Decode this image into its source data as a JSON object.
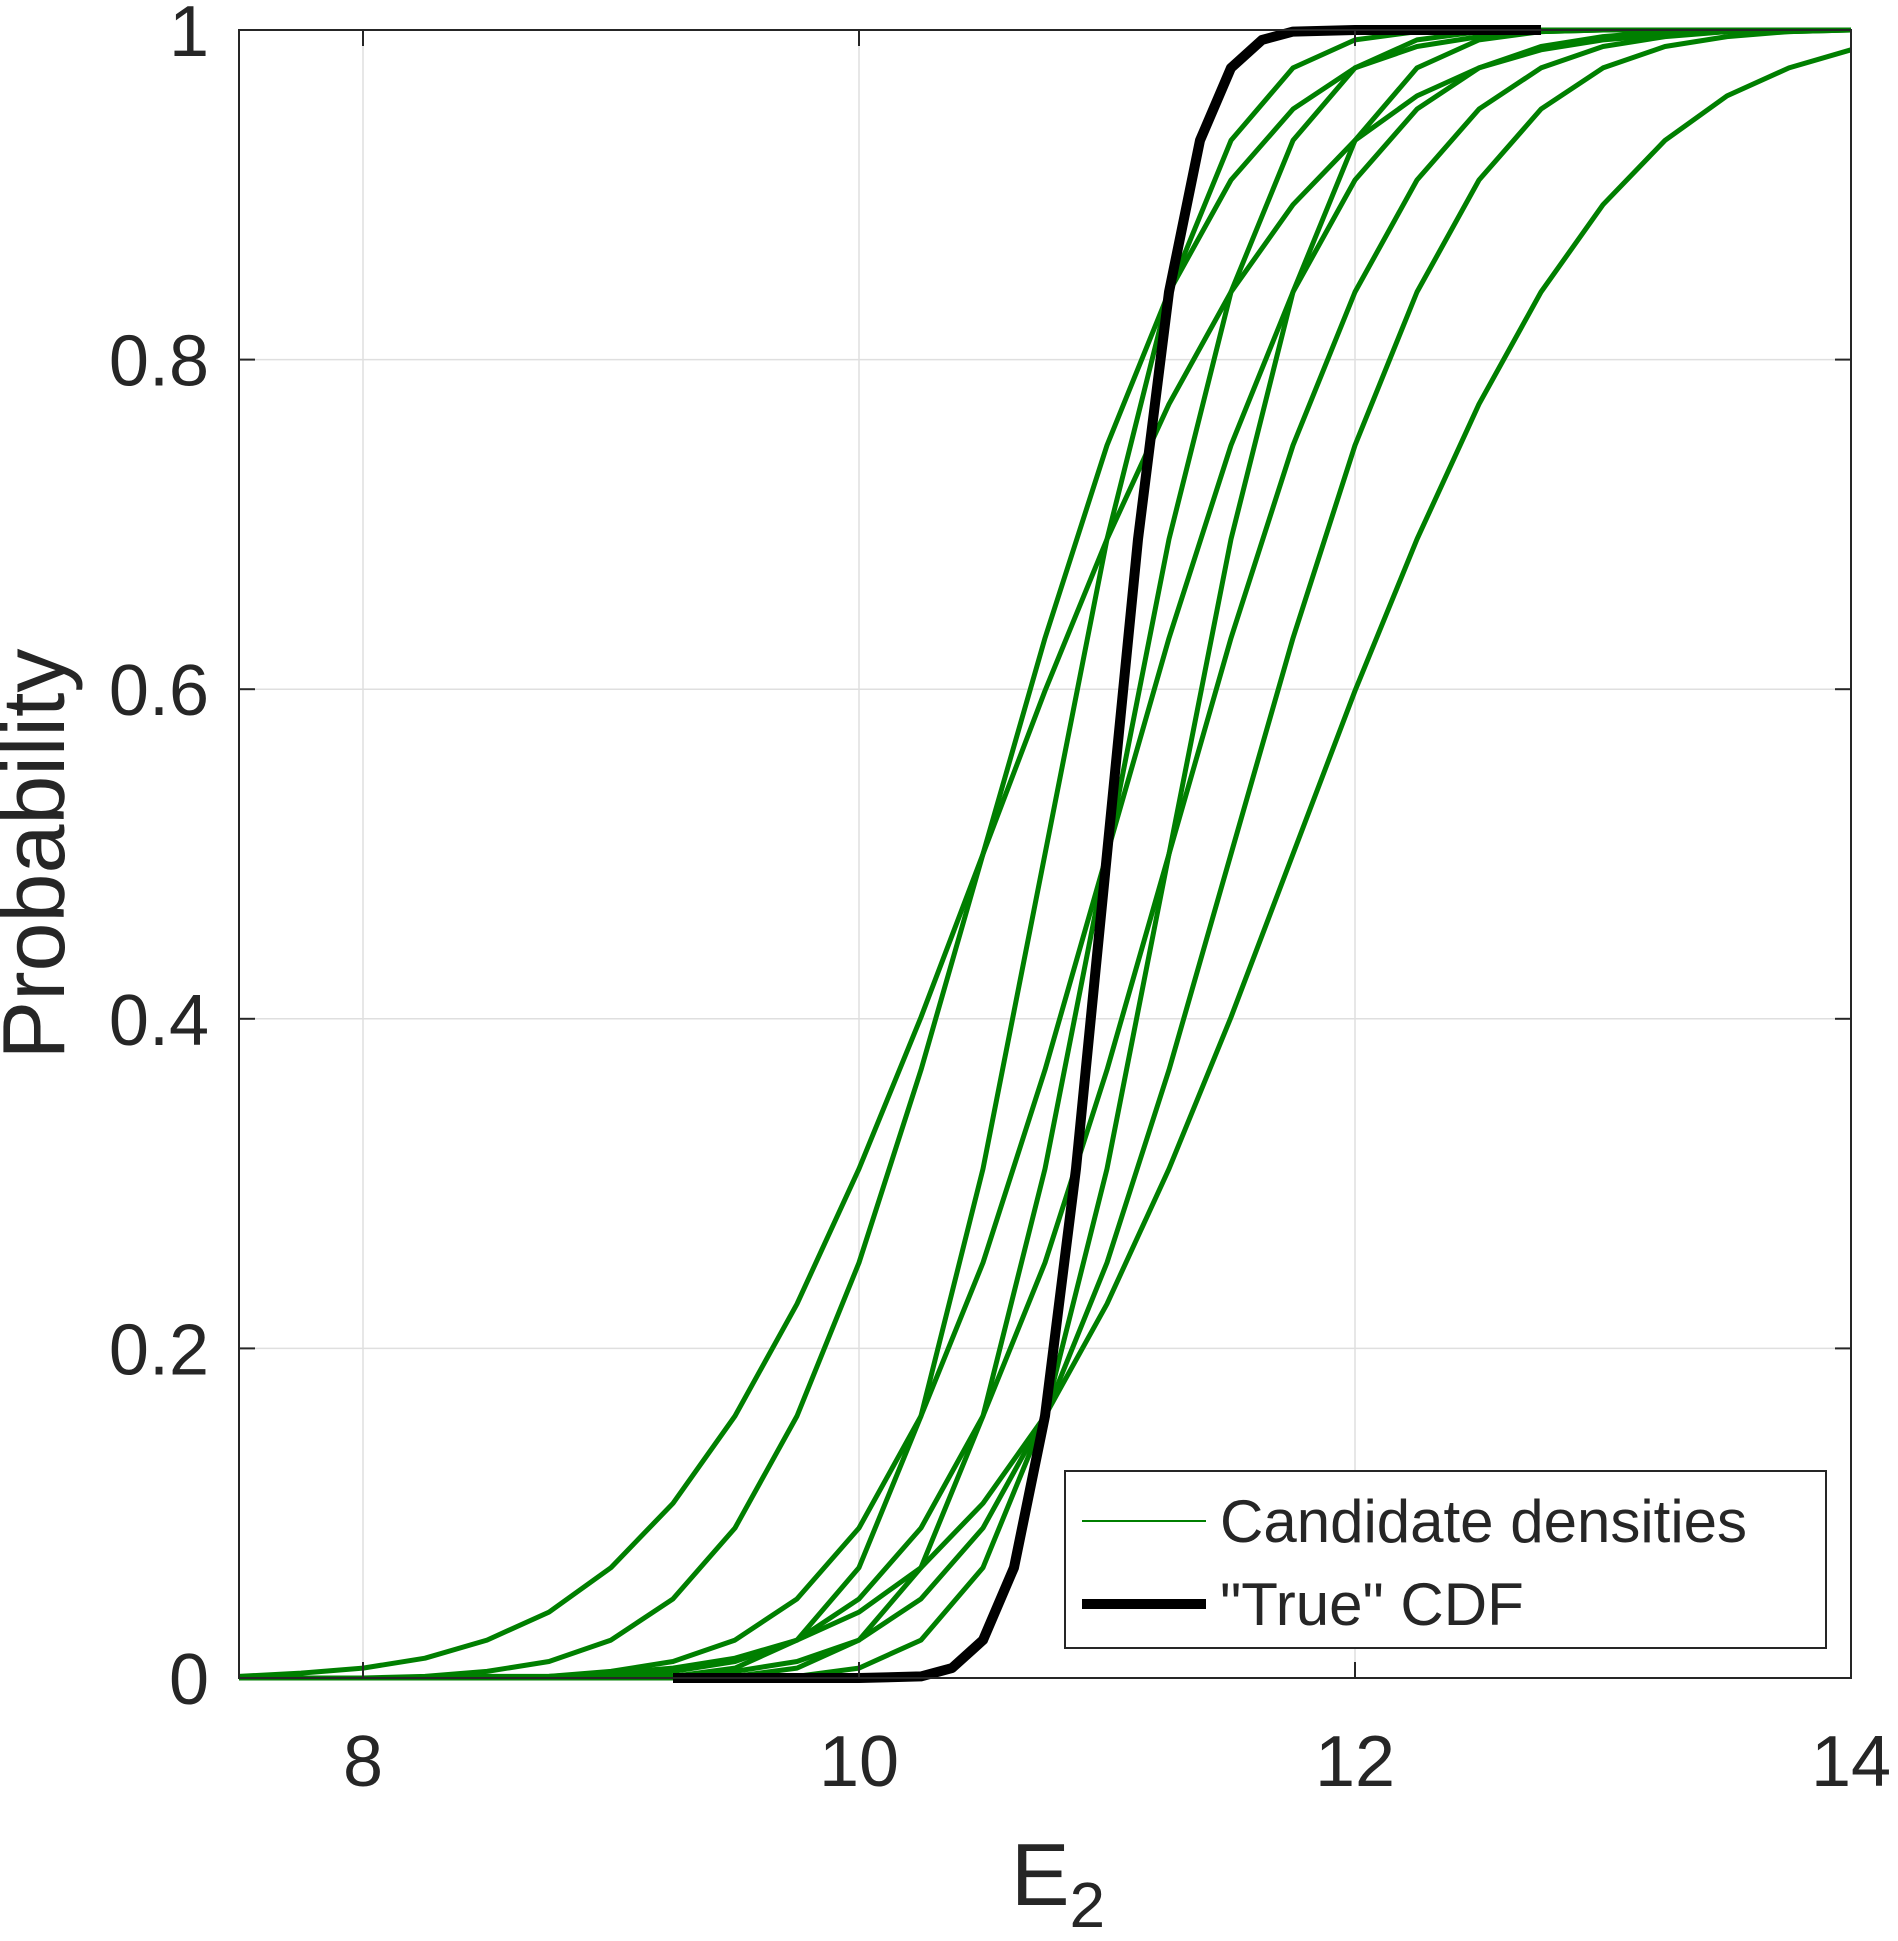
{
  "chart_data": {
    "type": "line",
    "xlabel": {
      "text": "E",
      "subscript": "2"
    },
    "ylabel": "Probability",
    "x": [
      7.5,
      7.75,
      8,
      8.25,
      8.5,
      8.75,
      9,
      9.25,
      9.5,
      9.75,
      10,
      10.25,
      10.5,
      10.75,
      11,
      11.25,
      11.5,
      11.75,
      12,
      12.25,
      12.5,
      12.75,
      13,
      13.25,
      13.5,
      13.75,
      14
    ],
    "series": [
      {
        "name": "Candidate densities",
        "color": "#007f00",
        "values": [
          [
            0.001,
            0.003,
            0.006,
            0.012,
            0.023,
            0.04,
            0.067,
            0.106,
            0.159,
            0.227,
            0.309,
            0.401,
            0.5,
            0.599,
            0.691,
            0.773,
            0.841,
            0.894,
            0.933,
            0.96,
            0.977,
            0.988,
            0.994,
            0.997,
            0.999,
            0.999,
            1
          ],
          [
            0,
            0,
            0,
            0.001,
            0.004,
            0.01,
            0.023,
            0.048,
            0.091,
            0.159,
            0.252,
            0.369,
            0.5,
            0.631,
            0.748,
            0.841,
            0.909,
            0.952,
            0.977,
            0.99,
            0.996,
            0.999,
            1,
            1,
            1,
            1,
            1
          ],
          [
            0,
            0,
            0,
            0,
            0,
            0,
            0,
            0.001,
            0.006,
            0.023,
            0.067,
            0.159,
            0.309,
            0.5,
            0.691,
            0.841,
            0.933,
            0.977,
            0.994,
            0.999,
            1,
            1,
            1,
            1,
            1,
            1,
            1
          ],
          [
            0,
            0,
            0,
            0,
            0,
            0,
            0,
            0,
            0.001,
            0.006,
            0.023,
            0.067,
            0.159,
            0.309,
            0.5,
            0.691,
            0.841,
            0.933,
            0.977,
            0.994,
            0.999,
            1,
            1,
            1,
            1,
            1,
            1
          ],
          [
            0,
            0,
            0,
            0,
            0,
            0.001,
            0.004,
            0.01,
            0.023,
            0.048,
            0.091,
            0.159,
            0.252,
            0.369,
            0.5,
            0.631,
            0.748,
            0.841,
            0.909,
            0.952,
            0.977,
            0.99,
            0.996,
            0.999,
            1,
            1,
            1
          ],
          [
            0,
            0,
            0,
            0,
            0,
            0,
            0,
            0,
            0,
            0.001,
            0.006,
            0.023,
            0.067,
            0.159,
            0.309,
            0.5,
            0.691,
            0.841,
            0.933,
            0.977,
            0.994,
            0.999,
            1,
            1,
            1,
            1,
            1
          ],
          [
            0,
            0,
            0,
            0,
            0,
            0,
            0.001,
            0.004,
            0.01,
            0.023,
            0.048,
            0.091,
            0.159,
            0.252,
            0.369,
            0.5,
            0.631,
            0.748,
            0.841,
            0.909,
            0.952,
            0.977,
            0.99,
            0.996,
            0.999,
            1,
            1
          ],
          [
            0,
            0,
            0,
            0,
            0,
            0,
            0,
            0.001,
            0.004,
            0.01,
            0.023,
            0.048,
            0.091,
            0.159,
            0.252,
            0.369,
            0.5,
            0.631,
            0.748,
            0.841,
            0.909,
            0.952,
            0.977,
            0.99,
            0.996,
            0.999,
            1
          ],
          [
            0,
            0,
            0,
            0,
            0.001,
            0.001,
            0.003,
            0.006,
            0.012,
            0.023,
            0.04,
            0.067,
            0.106,
            0.159,
            0.227,
            0.309,
            0.401,
            0.5,
            0.599,
            0.691,
            0.773,
            0.841,
            0.894,
            0.933,
            0.96,
            0.977,
            0.988
          ]
        ]
      },
      {
        "name": "\"True\" CDF",
        "color": "#000000",
        "x": [
          9.25,
          9.5,
          9.75,
          10,
          10.25,
          10.375,
          10.5,
          10.625,
          10.75,
          10.875,
          11,
          11.125,
          11.25,
          11.375,
          11.5,
          11.625,
          11.75,
          12,
          12.25,
          12.5,
          12.75
        ],
        "values": [
          0,
          0,
          0,
          0,
          0.001,
          0.006,
          0.023,
          0.067,
          0.159,
          0.309,
          0.5,
          0.691,
          0.841,
          0.933,
          0.977,
          0.994,
          0.999,
          1,
          1,
          1,
          1
        ]
      }
    ],
    "xlim": [
      7.5,
      14
    ],
    "xticks": [
      8,
      10,
      12,
      14
    ],
    "ylim": [
      0,
      1
    ],
    "yticks": [
      0,
      0.2,
      0.4,
      0.6,
      0.8,
      1
    ],
    "grid": true,
    "legend": "lower right"
  }
}
